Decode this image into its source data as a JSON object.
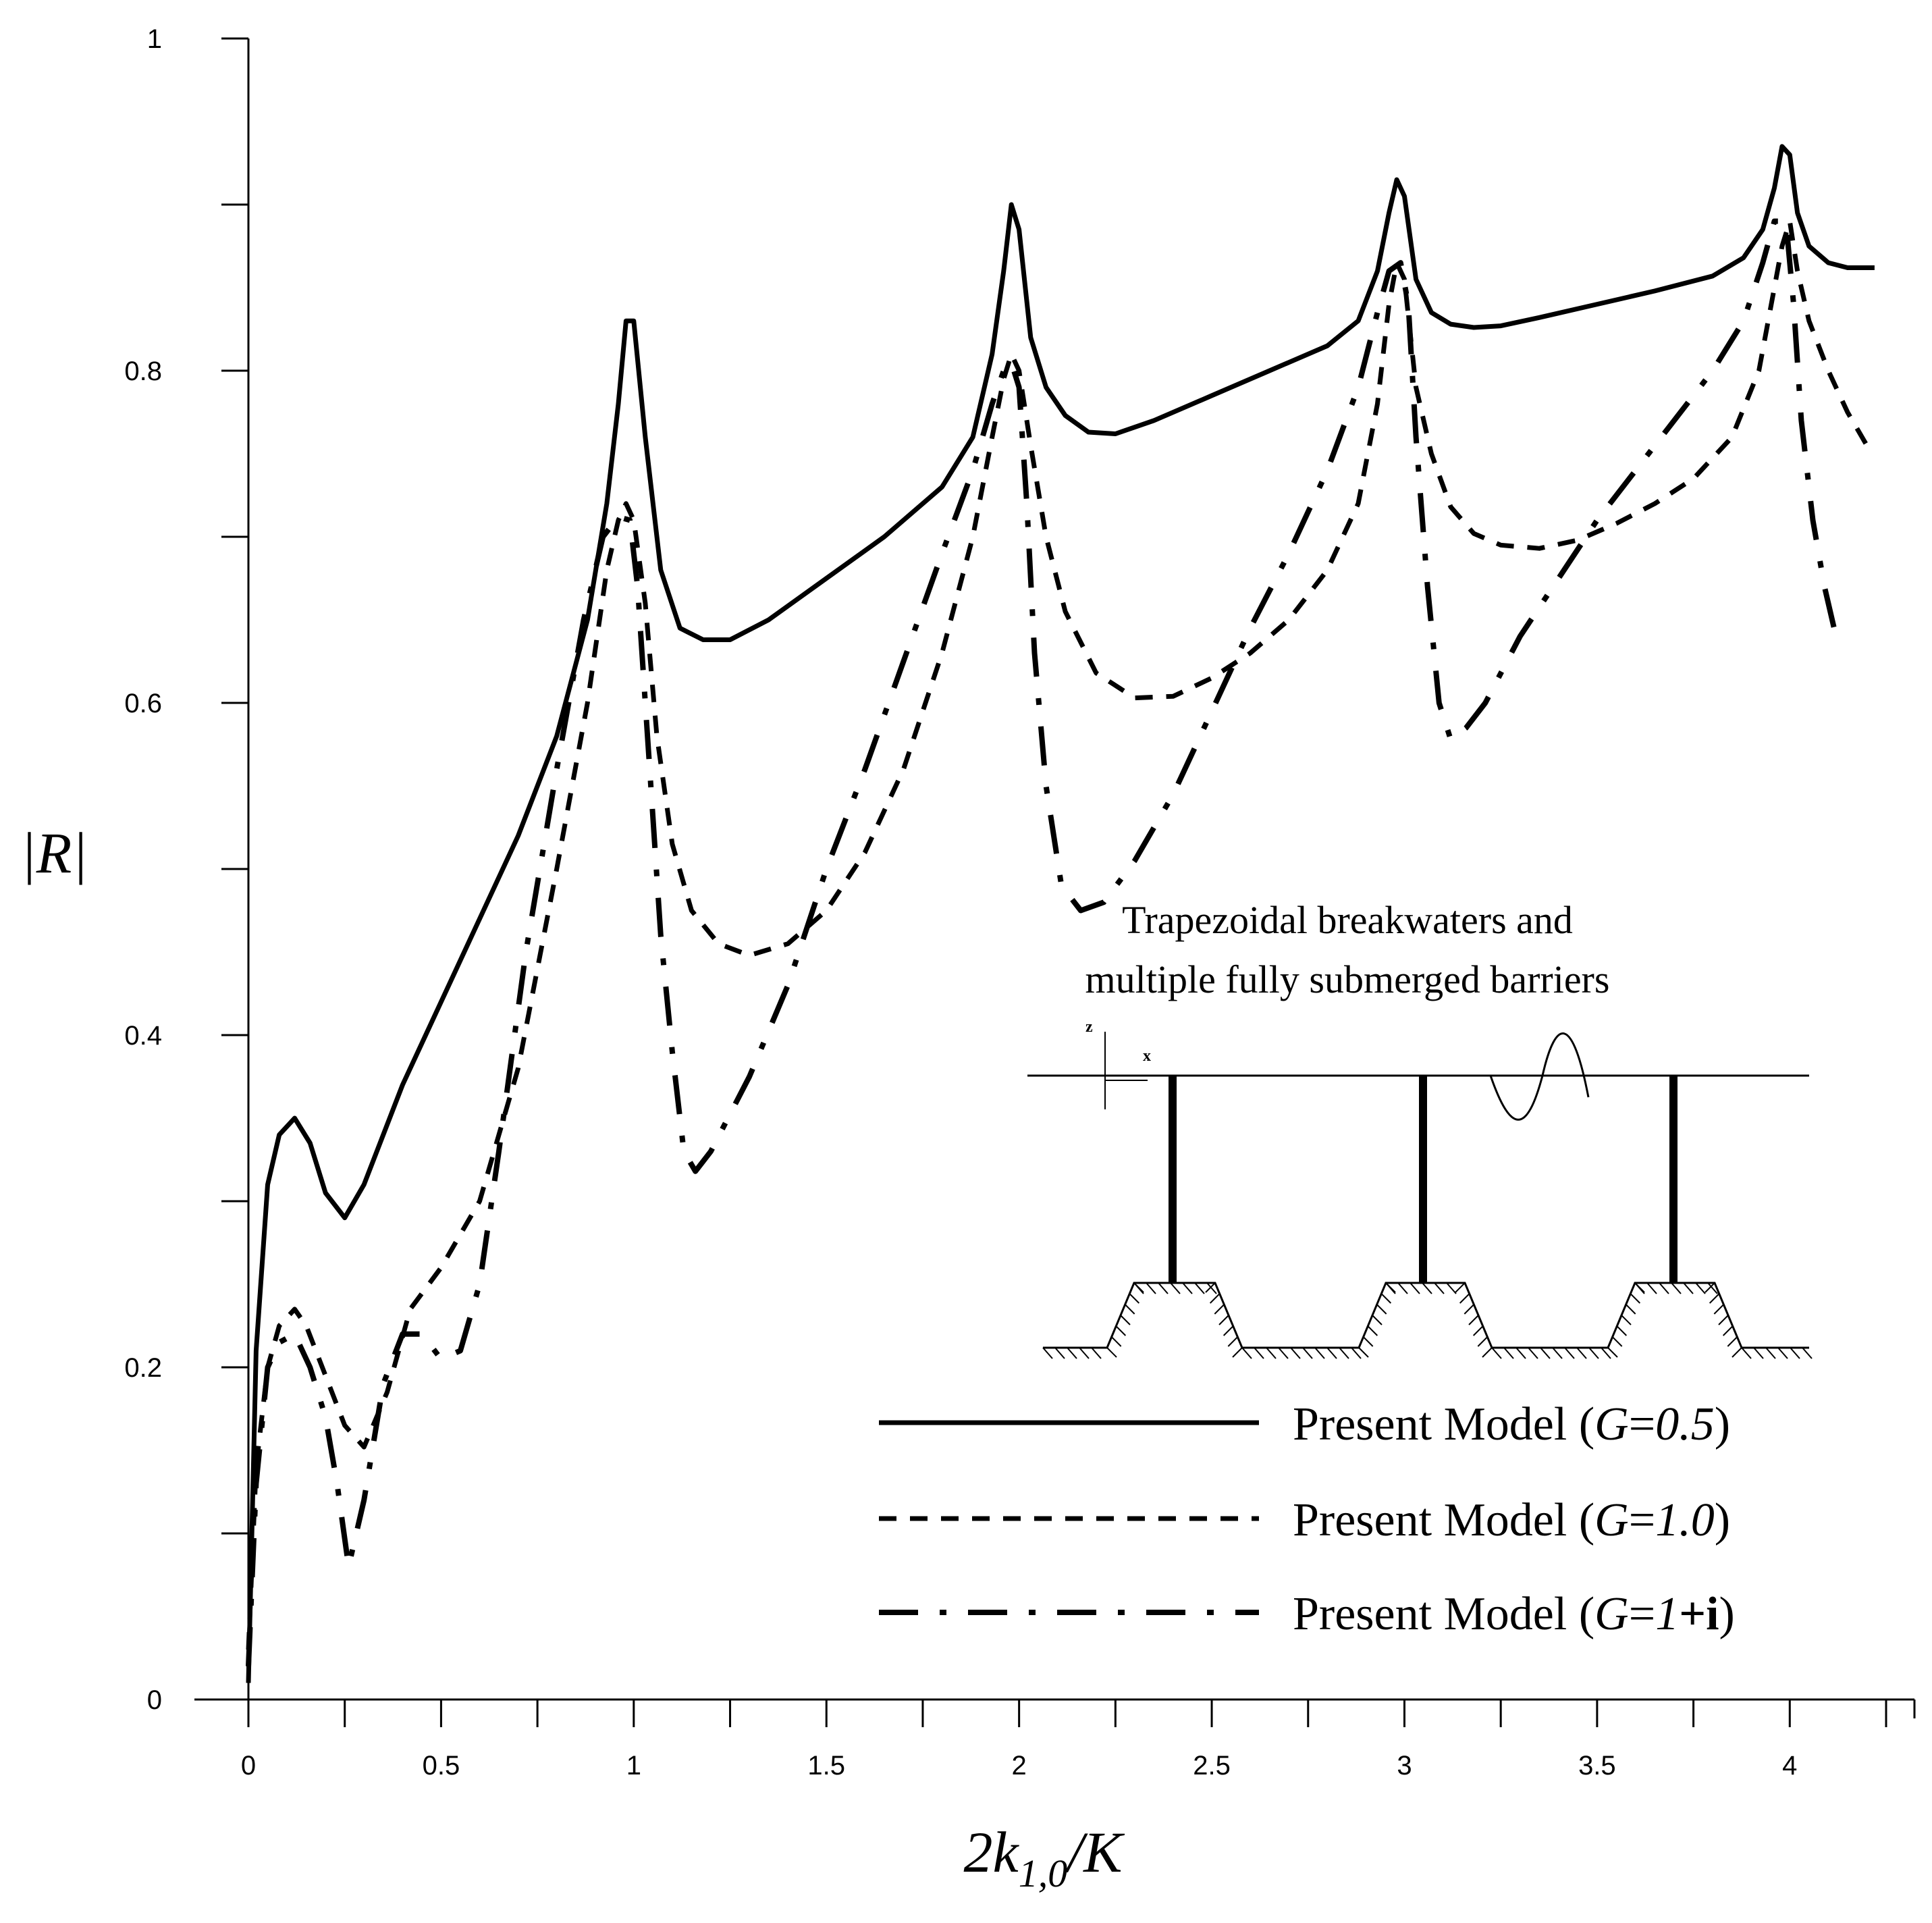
{
  "chart_data": {
    "type": "line",
    "title": "",
    "xlabel_parts": [
      "2k",
      "1,0",
      "/K"
    ],
    "ylabel": "|R|",
    "xlim": [
      0,
      4.25
    ],
    "ylim": [
      0,
      1
    ],
    "x_ticks": [
      0,
      0.5,
      1,
      1.5,
      2,
      2.5,
      3,
      3.5,
      4
    ],
    "x_tick_labels": [
      "0",
      "0.5",
      "1",
      "1.5",
      "2",
      "2.5",
      "3",
      "3.5",
      "4"
    ],
    "x_minor_step": 0.25,
    "y_ticks": [
      0,
      0.2,
      0.4,
      0.6,
      0.8,
      1
    ],
    "y_tick_labels": [
      "0",
      "0.2",
      "0.4",
      "0.6",
      "0.8",
      "1"
    ],
    "y_minor_step": 0.1,
    "grid": false,
    "annotation": {
      "lines": [
        "Trapezoidal breakwaters and",
        "multiple fully submerged barriers"
      ],
      "axis_z": "z",
      "axis_x": "x"
    },
    "legend_position": "bottom-right",
    "series": [
      {
        "name": "Present Model (G=0.5)",
        "label_prefix": "Present Model (",
        "label_var": "G",
        "label_eq": "=",
        "label_value": "0.5",
        "label_bold": "",
        "label_suffix": ")",
        "style": "solid",
        "x": [
          0,
          0.02,
          0.05,
          0.08,
          0.12,
          0.16,
          0.2,
          0.25,
          0.3,
          0.4,
          0.5,
          0.6,
          0.7,
          0.8,
          0.88,
          0.93,
          0.96,
          0.98,
          1.0,
          1.03,
          1.07,
          1.12,
          1.18,
          1.25,
          1.35,
          1.5,
          1.65,
          1.8,
          1.88,
          1.93,
          1.96,
          1.98,
          2.0,
          2.03,
          2.07,
          2.12,
          2.18,
          2.25,
          2.35,
          2.5,
          2.65,
          2.8,
          2.88,
          2.93,
          2.96,
          2.98,
          3.0,
          3.03,
          3.07,
          3.12,
          3.18,
          3.25,
          3.35,
          3.5,
          3.65,
          3.8,
          3.88,
          3.93,
          3.96,
          3.98,
          4.0,
          4.02,
          4.05,
          4.1,
          4.15,
          4.22
        ],
        "y": [
          0.01,
          0.21,
          0.31,
          0.34,
          0.35,
          0.335,
          0.305,
          0.29,
          0.31,
          0.37,
          0.42,
          0.47,
          0.52,
          0.58,
          0.65,
          0.72,
          0.78,
          0.83,
          0.83,
          0.76,
          0.68,
          0.645,
          0.638,
          0.638,
          0.65,
          0.675,
          0.7,
          0.73,
          0.76,
          0.81,
          0.86,
          0.9,
          0.885,
          0.82,
          0.79,
          0.773,
          0.763,
          0.762,
          0.77,
          0.785,
          0.8,
          0.815,
          0.83,
          0.86,
          0.895,
          0.915,
          0.905,
          0.855,
          0.835,
          0.828,
          0.826,
          0.827,
          0.832,
          0.84,
          0.848,
          0.857,
          0.868,
          0.885,
          0.91,
          0.935,
          0.93,
          0.895,
          0.875,
          0.865,
          0.862,
          0.862
        ]
      },
      {
        "name": "Present Model (G=1.0)",
        "label_prefix": "Present Model (",
        "label_var": "G",
        "label_eq": "=",
        "label_value": "1.0",
        "label_bold": "",
        "label_suffix": ")",
        "style": "dashed",
        "x": [
          0,
          0.02,
          0.05,
          0.08,
          0.12,
          0.15,
          0.2,
          0.25,
          0.3,
          0.36,
          0.42,
          0.5,
          0.6,
          0.7,
          0.8,
          0.88,
          0.93,
          0.96,
          0.98,
          1.0,
          1.03,
          1.06,
          1.1,
          1.15,
          1.22,
          1.3,
          1.4,
          1.5,
          1.6,
          1.7,
          1.8,
          1.88,
          1.93,
          1.96,
          1.98,
          2.0,
          2.03,
          2.07,
          2.12,
          2.2,
          2.3,
          2.4,
          2.5,
          2.6,
          2.7,
          2.8,
          2.88,
          2.93,
          2.96,
          2.98,
          3.0,
          3.03,
          3.07,
          3.12,
          3.18,
          3.25,
          3.35,
          3.45,
          3.55,
          3.65,
          3.75,
          3.85,
          3.92,
          3.96,
          3.98,
          4.0,
          4.02,
          4.05,
          4.1,
          4.15,
          4.2
        ],
        "y": [
          0.03,
          0.14,
          0.2,
          0.225,
          0.235,
          0.225,
          0.195,
          0.165,
          0.152,
          0.185,
          0.235,
          0.26,
          0.3,
          0.38,
          0.5,
          0.6,
          0.68,
          0.71,
          0.72,
          0.71,
          0.66,
          0.58,
          0.515,
          0.475,
          0.455,
          0.448,
          0.455,
          0.475,
          0.51,
          0.56,
          0.63,
          0.7,
          0.76,
          0.795,
          0.81,
          0.8,
          0.755,
          0.7,
          0.655,
          0.618,
          0.603,
          0.604,
          0.615,
          0.63,
          0.65,
          0.68,
          0.72,
          0.78,
          0.84,
          0.865,
          0.855,
          0.79,
          0.75,
          0.718,
          0.702,
          0.695,
          0.693,
          0.698,
          0.708,
          0.72,
          0.735,
          0.76,
          0.8,
          0.85,
          0.875,
          0.89,
          0.86,
          0.83,
          0.8,
          0.775,
          0.755
        ]
      },
      {
        "name": "Present Model (G=1+i)",
        "label_prefix": "Present Model (",
        "label_var": "G",
        "label_eq": "=",
        "label_value": "1",
        "label_bold": "+i",
        "label_suffix": ")",
        "style": "dashdot",
        "x": [
          0,
          0.02,
          0.05,
          0.08,
          0.12,
          0.16,
          0.2,
          0.23,
          0.26,
          0.3,
          0.35,
          0.4,
          0.45,
          0.5,
          0.55,
          0.6,
          0.65,
          0.72,
          0.8,
          0.87,
          0.92,
          0.96,
          0.99,
          1.01,
          1.03,
          1.05,
          1.07,
          1.1,
          1.13,
          1.16,
          1.2,
          1.3,
          1.4,
          1.5,
          1.6,
          1.7,
          1.8,
          1.88,
          1.93,
          1.96,
          1.98,
          2.0,
          2.02,
          2.04,
          2.07,
          2.11,
          2.16,
          2.22,
          2.3,
          2.4,
          2.5,
          2.6,
          2.7,
          2.8,
          2.88,
          2.93,
          2.96,
          2.99,
          3.01,
          3.03,
          3.06,
          3.09,
          3.12,
          3.16,
          3.21,
          3.3,
          3.4,
          3.5,
          3.6,
          3.7,
          3.8,
          3.88,
          3.93,
          3.96,
          3.99,
          4.01,
          4.03,
          4.06,
          4.09,
          4.12
        ],
        "y": [
          0.02,
          0.13,
          0.2,
          0.215,
          0.22,
          0.2,
          0.17,
          0.13,
          0.08,
          0.12,
          0.19,
          0.22,
          0.22,
          0.205,
          0.21,
          0.25,
          0.33,
          0.45,
          0.56,
          0.65,
          0.7,
          0.712,
          0.71,
          0.67,
          0.6,
          0.53,
          0.46,
          0.39,
          0.33,
          0.318,
          0.33,
          0.375,
          0.43,
          0.5,
          0.56,
          0.625,
          0.69,
          0.74,
          0.78,
          0.8,
          0.805,
          0.79,
          0.72,
          0.63,
          0.55,
          0.49,
          0.475,
          0.48,
          0.505,
          0.545,
          0.595,
          0.645,
          0.69,
          0.74,
          0.79,
          0.835,
          0.86,
          0.865,
          0.84,
          0.76,
          0.67,
          0.6,
          0.578,
          0.585,
          0.6,
          0.64,
          0.675,
          0.71,
          0.74,
          0.77,
          0.8,
          0.83,
          0.865,
          0.89,
          0.89,
          0.84,
          0.77,
          0.71,
          0.67,
          0.64
        ]
      }
    ]
  }
}
